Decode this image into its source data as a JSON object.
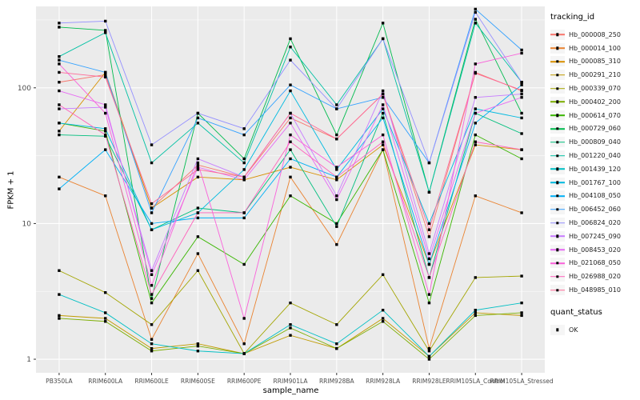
{
  "chart_data": {
    "type": "line",
    "title": "",
    "xlabel": "sample_name",
    "ylabel": "FPKM + 1",
    "y_scale": "log10",
    "ylim": [
      1,
      400
    ],
    "yticks": [
      1,
      10,
      100
    ],
    "grid": true,
    "legend_position": "right",
    "legend_title": "tracking_id",
    "quant_legend": {
      "title": "quant_status",
      "items": [
        "OK"
      ]
    },
    "colors": {
      "panel_bg": "#EBEBEB",
      "grid": "#FFFFFF",
      "point": "#000000",
      "tick_text": "#4D4D4D"
    },
    "point_shape": "black-square",
    "categories": [
      "PB350LA",
      "RRIM600LA",
      "RRIM600LE",
      "RRIM600SE",
      "RRIM600PE",
      "RRIM901LA",
      "RRIM928BA",
      "RRIM928LA",
      "RRIM928LE",
      "RRIM105LA_Control",
      "RRIM105LA_Stressed"
    ],
    "series": [
      {
        "name": "Hb_000008_250",
        "color": "#F8766D",
        "values": [
          110,
          125,
          13,
          27,
          22,
          60,
          42,
          90,
          8,
          130,
          95
        ]
      },
      {
        "name": "Hb_000014_100",
        "color": "#EA8331",
        "values": [
          22,
          16,
          1.4,
          6,
          1.3,
          22,
          7,
          35,
          1.2,
          16,
          12
        ]
      },
      {
        "name": "Hb_000085_310",
        "color": "#D89000",
        "values": [
          48,
          130,
          13,
          22,
          21,
          26,
          21,
          38,
          5,
          38,
          35
        ]
      },
      {
        "name": "Hb_000291_210",
        "color": "#C09B00",
        "values": [
          2.1,
          2.0,
          1.2,
          1.3,
          1.1,
          1.5,
          1.2,
          2.0,
          1.05,
          2.2,
          2.1
        ]
      },
      {
        "name": "Hb_000339_070",
        "color": "#A3A500",
        "values": [
          4.5,
          3.1,
          1.8,
          4.5,
          1.1,
          2.6,
          1.8,
          4.2,
          1.15,
          4.0,
          4.1
        ]
      },
      {
        "name": "Hb_000402_200",
        "color": "#7CAE00",
        "values": [
          2.0,
          1.9,
          1.15,
          1.25,
          1.1,
          1.7,
          1.2,
          1.9,
          1.0,
          2.1,
          2.2
        ]
      },
      {
        "name": "Hb_000614_070",
        "color": "#39B600",
        "values": [
          55,
          48,
          2.6,
          8,
          5,
          16,
          10,
          35,
          2.6,
          45,
          30
        ]
      },
      {
        "name": "Hb_000729_060",
        "color": "#00BB4E",
        "values": [
          280,
          265,
          2.8,
          65,
          30,
          230,
          45,
          300,
          17,
          320,
          65
        ]
      },
      {
        "name": "Hb_000809_040",
        "color": "#00BF7D",
        "values": [
          45,
          44,
          9,
          13,
          12,
          35,
          9.5,
          65,
          4,
          65,
          46
        ]
      },
      {
        "name": "Hb_001220_040",
        "color": "#00C1A3",
        "values": [
          170,
          255,
          28,
          55,
          28,
          200,
          75,
          230,
          17,
          300,
          110
        ]
      },
      {
        "name": "Hb_001439_120",
        "color": "#00BFC4",
        "values": [
          3.0,
          2.2,
          1.3,
          1.15,
          1.1,
          1.8,
          1.3,
          2.3,
          1.05,
          2.3,
          2.6
        ]
      },
      {
        "name": "Hb_001767_100",
        "color": "#00BAE0",
        "values": [
          55,
          50,
          9,
          12,
          25,
          95,
          25,
          70,
          10,
          70,
          60
        ]
      },
      {
        "name": "Hb_004108_050",
        "color": "#00B0F6",
        "values": [
          18,
          35,
          10,
          11,
          11,
          30,
          22,
          60,
          5,
          55,
          105
        ]
      },
      {
        "name": "Hb_006452_060",
        "color": "#35A2FF",
        "values": [
          160,
          130,
          12,
          60,
          45,
          105,
          70,
          85,
          28,
          380,
          190
        ]
      },
      {
        "name": "Hb_006824_020",
        "color": "#9590FF",
        "values": [
          300,
          310,
          38,
          65,
          50,
          160,
          70,
          230,
          28,
          360,
          110
        ]
      },
      {
        "name": "Hb_007245_090",
        "color": "#C77CFF",
        "values": [
          70,
          72,
          4.5,
          30,
          22,
          65,
          16,
          95,
          6,
          85,
          90
        ]
      },
      {
        "name": "Hb_008453_020",
        "color": "#E76BF3",
        "values": [
          95,
          75,
          4.2,
          26,
          21,
          55,
          15,
          75,
          5.5,
          65,
          85
        ]
      },
      {
        "name": "Hb_021068_050",
        "color": "#FA62DB",
        "values": [
          150,
          65,
          3.5,
          28,
          2.0,
          45,
          26,
          45,
          3.0,
          150,
          180
        ]
      },
      {
        "name": "Hb_026988_020",
        "color": "#FF62BC",
        "values": [
          75,
          45,
          3.0,
          12,
          12,
          40,
          22,
          40,
          4.0,
          40,
          35
        ]
      },
      {
        "name": "Hb_048985_010",
        "color": "#FF6A98",
        "values": [
          130,
          120,
          14,
          25,
          22,
          65,
          42,
          90,
          9,
          128,
          96
        ]
      }
    ]
  }
}
